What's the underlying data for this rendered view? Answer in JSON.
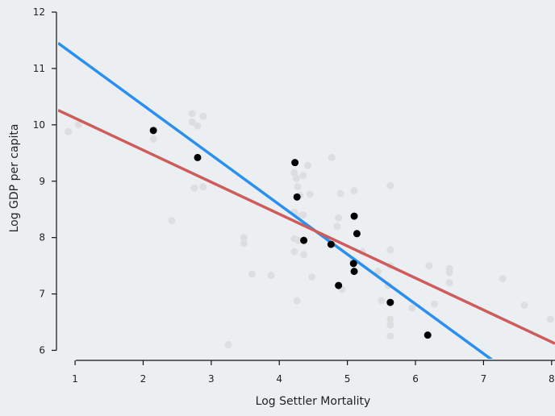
{
  "chart_data": {
    "type": "scatter",
    "xlabel": "Log Settler Mortality",
    "ylabel": "Log GDP per capita",
    "xlim": [
      0.75,
      8.05
    ],
    "ylim": [
      5.85,
      12.0
    ],
    "x_ticks": [
      1,
      2,
      3,
      4,
      5,
      6,
      7,
      8
    ],
    "y_ticks": [
      6,
      7,
      8,
      9,
      10,
      11,
      12
    ],
    "grid": false,
    "legend": "none",
    "colors": {
      "background": "#eceff2",
      "background_points": "#dedede",
      "highlight_points": "#000000",
      "blue_line": "#2b8ff0",
      "red_line": "#cd5c5c"
    },
    "series": [
      {
        "role": "background_points",
        "points": [
          [
            0.9,
            9.88
          ],
          [
            1.05,
            10.0
          ],
          [
            2.15,
            9.75
          ],
          [
            2.42,
            8.3
          ],
          [
            2.72,
            10.2
          ],
          [
            2.72,
            10.05
          ],
          [
            2.8,
            9.98
          ],
          [
            2.88,
            10.15
          ],
          [
            2.75,
            8.88
          ],
          [
            2.88,
            8.9
          ],
          [
            3.25,
            6.1
          ],
          [
            3.48,
            8.0
          ],
          [
            3.48,
            7.9
          ],
          [
            3.6,
            7.35
          ],
          [
            3.88,
            7.33
          ],
          [
            4.22,
            9.15
          ],
          [
            4.25,
            9.05
          ],
          [
            4.27,
            8.9
          ],
          [
            4.3,
            8.75
          ],
          [
            4.35,
            9.1
          ],
          [
            4.42,
            9.28
          ],
          [
            4.45,
            8.77
          ],
          [
            4.22,
            8.45
          ],
          [
            4.28,
            8.38
          ],
          [
            4.35,
            8.4
          ],
          [
            4.22,
            7.98
          ],
          [
            4.28,
            7.95
          ],
          [
            4.22,
            7.75
          ],
          [
            4.36,
            7.7
          ],
          [
            4.26,
            6.88
          ],
          [
            4.48,
            7.3
          ],
          [
            4.77,
            9.42
          ],
          [
            4.87,
            8.35
          ],
          [
            4.9,
            8.78
          ],
          [
            5.1,
            8.83
          ],
          [
            4.85,
            8.2
          ],
          [
            4.92,
            7.08
          ],
          [
            5.08,
            7.6
          ],
          [
            5.22,
            7.75
          ],
          [
            5.45,
            7.4
          ],
          [
            5.5,
            6.88
          ],
          [
            5.6,
            7.15
          ],
          [
            5.63,
            8.92
          ],
          [
            5.63,
            7.78
          ],
          [
            5.63,
            7.5
          ],
          [
            5.63,
            6.55
          ],
          [
            5.63,
            6.45
          ],
          [
            5.63,
            6.25
          ],
          [
            5.95,
            6.75
          ],
          [
            6.2,
            7.5
          ],
          [
            6.28,
            6.82
          ],
          [
            6.5,
            7.45
          ],
          [
            6.5,
            7.38
          ],
          [
            6.5,
            7.2
          ],
          [
            7.28,
            7.27
          ],
          [
            7.6,
            6.8
          ],
          [
            7.98,
            6.55
          ]
        ]
      },
      {
        "role": "highlight_points",
        "points": [
          [
            2.15,
            9.9
          ],
          [
            2.8,
            9.42
          ],
          [
            4.23,
            9.33
          ],
          [
            4.26,
            8.72
          ],
          [
            4.36,
            7.95
          ],
          [
            4.76,
            7.88
          ],
          [
            5.1,
            8.38
          ],
          [
            5.14,
            8.07
          ],
          [
            5.09,
            7.54
          ],
          [
            5.1,
            7.4
          ],
          [
            4.87,
            7.15
          ],
          [
            5.63,
            6.85
          ],
          [
            6.18,
            6.27
          ]
        ]
      }
    ],
    "lines": [
      {
        "role": "blue_line",
        "x": [
          0.75,
          7.25
        ],
        "y": [
          11.45,
          5.72
        ]
      },
      {
        "role": "red_line",
        "x": [
          0.75,
          8.05
        ],
        "y": [
          10.26,
          6.12
        ]
      }
    ]
  }
}
